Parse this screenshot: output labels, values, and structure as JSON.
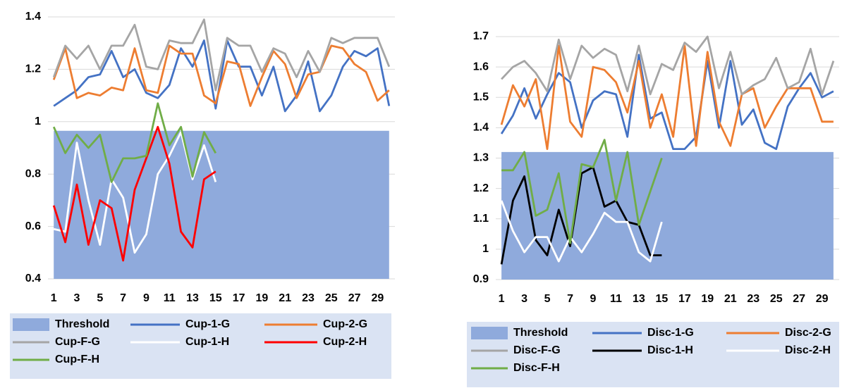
{
  "chart_data": [
    {
      "type": "line",
      "categories": [
        1,
        null,
        3,
        null,
        5,
        null,
        7,
        null,
        9,
        null,
        11,
        null,
        13,
        null,
        15,
        null,
        17,
        null,
        19,
        null,
        21,
        null,
        23,
        null,
        25,
        null,
        27,
        null,
        29,
        null
      ],
      "ylim": [
        0.4,
        1.4
      ],
      "yticks": [
        0.4,
        0.6,
        0.8,
        1,
        1.2,
        1.4
      ],
      "grid": true,
      "series": [
        {
          "name": "Threshold",
          "kind": "area",
          "color": "#8faadc",
          "values": [
            0.965,
            0.965,
            0.965,
            0.965,
            0.965,
            0.965,
            0.965,
            0.965,
            0.965,
            0.965,
            0.965,
            0.965,
            0.965,
            0.965,
            0.965,
            0.965,
            0.965,
            0.965,
            0.965,
            0.965,
            0.965,
            0.965,
            0.965,
            0.965,
            0.965,
            0.965,
            0.965,
            0.965,
            0.965,
            0.965
          ]
        },
        {
          "name": "Cup-1-G",
          "color": "#4472c4",
          "values": [
            1.06,
            1.09,
            1.12,
            1.17,
            1.18,
            1.27,
            1.17,
            1.2,
            1.11,
            1.09,
            1.14,
            1.28,
            1.21,
            1.31,
            1.05,
            1.31,
            1.21,
            1.21,
            1.1,
            1.21,
            1.04,
            1.1,
            1.23,
            1.04,
            1.1,
            1.21,
            1.27,
            1.25,
            1.28,
            1.06
          ]
        },
        {
          "name": "Cup-2-G",
          "color": "#ed7d31",
          "values": [
            1.16,
            1.28,
            1.09,
            1.11,
            1.1,
            1.13,
            1.12,
            1.28,
            1.12,
            1.11,
            1.29,
            1.26,
            1.26,
            1.1,
            1.07,
            1.23,
            1.22,
            1.06,
            1.17,
            1.27,
            1.22,
            1.09,
            1.18,
            1.19,
            1.29,
            1.28,
            1.22,
            1.19,
            1.08,
            1.12
          ]
        },
        {
          "name": "Cup-F-G",
          "color": "#a5a5a5",
          "values": [
            1.17,
            1.29,
            1.24,
            1.29,
            1.2,
            1.29,
            1.29,
            1.37,
            1.21,
            1.2,
            1.31,
            1.3,
            1.3,
            1.39,
            1.12,
            1.32,
            1.29,
            1.29,
            1.19,
            1.28,
            1.26,
            1.17,
            1.27,
            1.19,
            1.32,
            1.3,
            1.32,
            1.32,
            1.32,
            1.21
          ]
        },
        {
          "name": "Cup-1-H",
          "color": "#ffffff",
          "values": [
            0.59,
            0.58,
            0.92,
            0.7,
            0.53,
            0.78,
            0.71,
            0.5,
            0.57,
            0.8,
            0.87,
            0.96,
            0.78,
            0.91,
            0.77,
            null,
            null,
            null,
            null,
            null,
            null,
            null,
            null,
            null,
            null,
            null,
            null,
            null,
            null,
            null
          ]
        },
        {
          "name": "Cup-2-H",
          "color": "#ff0000",
          "values": [
            0.68,
            0.54,
            0.76,
            0.53,
            0.7,
            0.67,
            0.47,
            0.74,
            0.86,
            0.98,
            0.84,
            0.58,
            0.52,
            0.78,
            0.81,
            null,
            null,
            null,
            null,
            null,
            null,
            null,
            null,
            null,
            null,
            null,
            null,
            null,
            null,
            null
          ]
        },
        {
          "name": "Cup-F-H",
          "color": "#70ad47",
          "values": [
            0.98,
            0.88,
            0.95,
            0.9,
            0.95,
            0.77,
            0.86,
            0.86,
            0.87,
            1.07,
            0.91,
            0.98,
            0.79,
            0.96,
            0.88,
            null,
            null,
            null,
            null,
            null,
            null,
            null,
            null,
            null,
            null,
            null,
            null,
            null,
            null,
            null
          ]
        }
      ]
    },
    {
      "type": "line",
      "categories": [
        1,
        null,
        3,
        null,
        5,
        null,
        7,
        null,
        9,
        null,
        11,
        null,
        13,
        null,
        15,
        null,
        17,
        null,
        19,
        null,
        21,
        null,
        23,
        null,
        25,
        null,
        27,
        null,
        29,
        null
      ],
      "ylim": [
        0.9,
        1.7
      ],
      "yticks": [
        0.9,
        1,
        1.1,
        1.2,
        1.3,
        1.4,
        1.5,
        1.6,
        1.7
      ],
      "grid": true,
      "series": [
        {
          "name": "Threshold",
          "kind": "area",
          "color": "#8faadc",
          "values": [
            1.32,
            1.32,
            1.32,
            1.32,
            1.32,
            1.32,
            1.32,
            1.32,
            1.32,
            1.32,
            1.32,
            1.32,
            1.32,
            1.32,
            1.32,
            1.32,
            1.32,
            1.32,
            1.32,
            1.32,
            1.32,
            1.32,
            1.32,
            1.32,
            1.32,
            1.32,
            1.32,
            1.32,
            1.32,
            1.32
          ]
        },
        {
          "name": "Disc-1-G",
          "color": "#4472c4",
          "values": [
            1.38,
            1.44,
            1.53,
            1.43,
            1.51,
            1.58,
            1.55,
            1.4,
            1.49,
            1.52,
            1.51,
            1.37,
            1.64,
            1.43,
            1.45,
            1.33,
            1.33,
            1.37,
            1.62,
            1.4,
            1.62,
            1.41,
            1.46,
            1.35,
            1.33,
            1.47,
            1.53,
            1.58,
            1.5,
            1.52
          ]
        },
        {
          "name": "Disc-2-G",
          "color": "#ed7d31",
          "values": [
            1.41,
            1.54,
            1.47,
            1.56,
            1.33,
            1.67,
            1.42,
            1.37,
            1.6,
            1.59,
            1.55,
            1.45,
            1.62,
            1.4,
            1.51,
            1.37,
            1.67,
            1.34,
            1.65,
            1.42,
            1.34,
            1.51,
            1.53,
            1.4,
            1.47,
            1.53,
            1.53,
            1.53,
            1.42,
            1.42
          ]
        },
        {
          "name": "Disc-F-G",
          "color": "#a5a5a5",
          "values": [
            1.56,
            1.6,
            1.62,
            1.58,
            1.52,
            1.69,
            1.56,
            1.67,
            1.63,
            1.66,
            1.64,
            1.52,
            1.67,
            1.51,
            1.61,
            1.59,
            1.68,
            1.65,
            1.7,
            1.53,
            1.65,
            1.51,
            1.54,
            1.56,
            1.63,
            1.53,
            1.55,
            1.66,
            1.51,
            1.62
          ]
        },
        {
          "name": "Disc-1-H",
          "color": "#000000",
          "values": [
            0.95,
            1.16,
            1.24,
            1.03,
            0.98,
            1.13,
            1.01,
            1.25,
            1.27,
            1.14,
            1.16,
            1.09,
            1.08,
            0.98,
            0.98,
            null,
            null,
            null,
            null,
            null,
            null,
            null,
            null,
            null,
            null,
            null,
            null,
            null,
            null,
            null
          ]
        },
        {
          "name": "Disc-2-H",
          "color": "#ffffff",
          "values": [
            1.16,
            1.06,
            0.99,
            1.04,
            1.04,
            0.96,
            1.04,
            0.99,
            1.05,
            1.12,
            1.09,
            1.09,
            0.99,
            0.96,
            1.09,
            null,
            null,
            null,
            null,
            null,
            null,
            null,
            null,
            null,
            null,
            null,
            null,
            null,
            null,
            null
          ]
        },
        {
          "name": "Disc-F-H",
          "color": "#70ad47",
          "values": [
            1.26,
            1.26,
            1.32,
            1.11,
            1.13,
            1.25,
            1.02,
            1.28,
            1.27,
            1.36,
            1.16,
            1.32,
            1.08,
            1.19,
            1.3,
            null,
            null,
            null,
            null,
            null,
            null,
            null,
            null,
            null,
            null,
            null,
            null,
            null,
            null,
            null
          ]
        }
      ]
    }
  ]
}
